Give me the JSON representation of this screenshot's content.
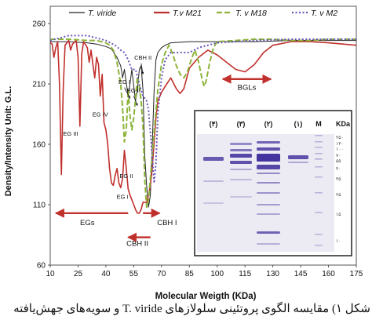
{
  "chart_data": {
    "type": "line",
    "title": "",
    "xlabel": "Molecular Weigth (KDa)",
    "ylabel": "Density/Intensity Unit: G.L.",
    "xlim": [
      10,
      175
    ],
    "ylim": [
      60,
      260
    ],
    "x_ticks": [
      10,
      25,
      40,
      55,
      70,
      85,
      100,
      115,
      130,
      145,
      160,
      175
    ],
    "y_ticks": [
      60,
      110,
      160,
      210,
      260
    ],
    "grid": false,
    "legend": {
      "placement": "top"
    },
    "series": [
      {
        "name": "T. viride",
        "color": "#222222",
        "dash": "solid",
        "points": [
          [
            10,
            245
          ],
          [
            20,
            245
          ],
          [
            30,
            244
          ],
          [
            35,
            243
          ],
          [
            40,
            241
          ],
          [
            43,
            239
          ],
          [
            46,
            232
          ],
          [
            48,
            225
          ],
          [
            49,
            215
          ],
          [
            50,
            222
          ],
          [
            52,
            200
          ],
          [
            53,
            210
          ],
          [
            54,
            222
          ],
          [
            55,
            208
          ],
          [
            56,
            196
          ],
          [
            57,
            205
          ],
          [
            58,
            222
          ],
          [
            59,
            225
          ],
          [
            60,
            205
          ],
          [
            61,
            150
          ],
          [
            62,
            125
          ],
          [
            63,
            108
          ],
          [
            64,
            118
          ],
          [
            65,
            160
          ],
          [
            66,
            205
          ],
          [
            67,
            230
          ],
          [
            68,
            236
          ],
          [
            70,
            240
          ],
          [
            72,
            242
          ],
          [
            75,
            244
          ],
          [
            85,
            245
          ],
          [
            100,
            245
          ],
          [
            120,
            245
          ],
          [
            140,
            246
          ],
          [
            160,
            246
          ],
          [
            175,
            246
          ]
        ]
      },
      {
        "name": "T.v M21",
        "color": "#c0302c",
        "dash": "solid",
        "points": [
          [
            10,
            244
          ],
          [
            11,
            243
          ],
          [
            12,
            232
          ],
          [
            13,
            240
          ],
          [
            14,
            245
          ],
          [
            15,
            210
          ],
          [
            16,
            135
          ],
          [
            17,
            205
          ],
          [
            18,
            242
          ],
          [
            20,
            246
          ],
          [
            21,
            238
          ],
          [
            22,
            243
          ],
          [
            24,
            246
          ],
          [
            25,
            232
          ],
          [
            26,
            175
          ],
          [
            27,
            235
          ],
          [
            28,
            245
          ],
          [
            30,
            240
          ],
          [
            31,
            228
          ],
          [
            32,
            238
          ],
          [
            33,
            226
          ],
          [
            34,
            215
          ],
          [
            35,
            232
          ],
          [
            36,
            226
          ],
          [
            37,
            200
          ],
          [
            38,
            218
          ],
          [
            39,
            178
          ],
          [
            40,
            172
          ],
          [
            41,
            160
          ],
          [
            42,
            140
          ],
          [
            43,
            128
          ],
          [
            44,
            126
          ],
          [
            45,
            134
          ],
          [
            46,
            140
          ],
          [
            47,
            128
          ],
          [
            48,
            124
          ],
          [
            49,
            132
          ],
          [
            50,
            155
          ],
          [
            51,
            140
          ],
          [
            52,
            123
          ],
          [
            53,
            118
          ],
          [
            54,
            114
          ],
          [
            55,
            110
          ],
          [
            56,
            106
          ],
          [
            57,
            103
          ],
          [
            58,
            103
          ],
          [
            59,
            106
          ],
          [
            60,
            112
          ],
          [
            61,
            112
          ],
          [
            62,
            112
          ],
          [
            63,
            118
          ],
          [
            64,
            126
          ],
          [
            65,
            140
          ],
          [
            66,
            162
          ],
          [
            67,
            182
          ],
          [
            68,
            196
          ],
          [
            70,
            203
          ],
          [
            72,
            208
          ],
          [
            75,
            215
          ],
          [
            78,
            206
          ],
          [
            80,
            202
          ],
          [
            82,
            206
          ],
          [
            85,
            223
          ],
          [
            90,
            232
          ],
          [
            95,
            238
          ],
          [
            100,
            234
          ],
          [
            105,
            228
          ],
          [
            110,
            222
          ],
          [
            115,
            220
          ],
          [
            120,
            226
          ],
          [
            125,
            236
          ],
          [
            130,
            242
          ],
          [
            140,
            245
          ],
          [
            150,
            245
          ],
          [
            160,
            244
          ],
          [
            175,
            242
          ]
        ]
      },
      {
        "name": "T. v M18",
        "color": "#8cb43a",
        "dash": "dashed",
        "points": [
          [
            10,
            247
          ],
          [
            20,
            247
          ],
          [
            30,
            246
          ],
          [
            35,
            246
          ],
          [
            40,
            244
          ],
          [
            42,
            242
          ],
          [
            44,
            238
          ],
          [
            46,
            228
          ],
          [
            48,
            210
          ],
          [
            49,
            190
          ],
          [
            50,
            162
          ],
          [
            51,
            172
          ],
          [
            52,
            205
          ],
          [
            53,
            184
          ],
          [
            54,
            172
          ],
          [
            55,
            182
          ],
          [
            56,
            198
          ],
          [
            57,
            216
          ],
          [
            58,
            208
          ],
          [
            59,
            196
          ],
          [
            60,
            175
          ],
          [
            61,
            130
          ],
          [
            62,
            108
          ],
          [
            63,
            114
          ],
          [
            64,
            132
          ],
          [
            66,
            170
          ],
          [
            68,
            205
          ],
          [
            70,
            226
          ],
          [
            72,
            236
          ],
          [
            74,
            242
          ],
          [
            76,
            235
          ],
          [
            78,
            225
          ],
          [
            80,
            218
          ],
          [
            82,
            215
          ],
          [
            84,
            220
          ],
          [
            86,
            230
          ],
          [
            88,
            238
          ],
          [
            90,
            228
          ],
          [
            92,
            213
          ],
          [
            93,
            208
          ],
          [
            94,
            212
          ],
          [
            96,
            228
          ],
          [
            98,
            240
          ],
          [
            100,
            245
          ],
          [
            110,
            246
          ],
          [
            120,
            247
          ],
          [
            130,
            247
          ],
          [
            140,
            246
          ],
          [
            150,
            246
          ],
          [
            160,
            247
          ],
          [
            175,
            247
          ]
        ]
      },
      {
        "name": "T. v M2",
        "color": "#6b58b8",
        "dash": "dotted",
        "points": [
          [
            10,
            246
          ],
          [
            20,
            250
          ],
          [
            30,
            250
          ],
          [
            35,
            248
          ],
          [
            40,
            246
          ],
          [
            45,
            242
          ],
          [
            48,
            238
          ],
          [
            50,
            236
          ],
          [
            52,
            230
          ],
          [
            54,
            222
          ],
          [
            56,
            222
          ],
          [
            58,
            210
          ],
          [
            60,
            200
          ],
          [
            62,
            196
          ],
          [
            63,
            188
          ],
          [
            64,
            170
          ],
          [
            65,
            150
          ],
          [
            66,
            128
          ],
          [
            67,
            145
          ],
          [
            68,
            185
          ],
          [
            70,
            215
          ],
          [
            72,
            230
          ],
          [
            75,
            236
          ],
          [
            80,
            236
          ],
          [
            85,
            236
          ],
          [
            90,
            240
          ],
          [
            100,
            244
          ],
          [
            110,
            245
          ],
          [
            120,
            246
          ],
          [
            140,
            247
          ],
          [
            160,
            247
          ],
          [
            175,
            247
          ]
        ]
      }
    ],
    "annotations": [
      {
        "text": "EG III",
        "x": 21,
        "y": 167
      },
      {
        "text": "EG IV",
        "x": 37,
        "y": 183
      },
      {
        "text": "EG II",
        "x": 51,
        "y": 132
      },
      {
        "text": "EG I",
        "x": 49,
        "y": 115
      },
      {
        "text": "EG I",
        "x": 50,
        "y": 210
      },
      {
        "text": "EG II",
        "x": 55,
        "y": 203
      },
      {
        "text": "CBH II",
        "x": 60,
        "y": 230
      },
      {
        "text": "CBH I",
        "x": 73,
        "y": 93
      },
      {
        "text": "CBH II",
        "x": 57,
        "y": 76
      },
      {
        "text": "BGLs",
        "x": 116,
        "y": 205
      },
      {
        "text": "EGs",
        "x": 30,
        "y": 93
      }
    ],
    "arrows": [
      {
        "x1": 52,
        "x2": 13,
        "y": 103,
        "direction": "left"
      },
      {
        "x1": 64,
        "x2": 52,
        "y": 83,
        "direction": "left"
      },
      {
        "x1": 60,
        "x2": 69,
        "y": 103,
        "direction": "right"
      },
      {
        "x1": 103,
        "x2": 129,
        "y": 214,
        "direction": "both"
      }
    ],
    "inset": {
      "title": "",
      "lane_labels": [
        "(۴)",
        "(۳)",
        "(۲)",
        "(۱)",
        "M"
      ],
      "unit_label": "KDa",
      "marker_labels": [
        "۲۵۰",
        "۱۳۰",
        "۱۰۰",
        "۷۰",
        "۵۵",
        "۴۰",
        "۳۵",
        "۲۵",
        "۱۵",
        "۱۰"
      ]
    }
  },
  "caption": "شکل ۱) مقایسه الگوی پروتئینی سلولازهای T. viride و سویه‌های جهش‌یافته"
}
